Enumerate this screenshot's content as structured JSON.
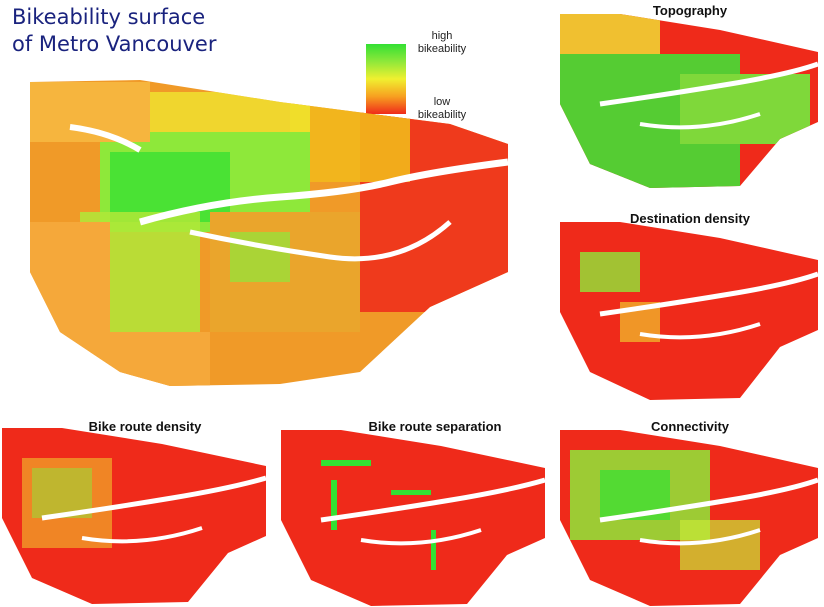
{
  "title": {
    "line1": "Bikeability surface",
    "line2": "of Metro Vancouver"
  },
  "legend": {
    "high_line1": "high",
    "high_line2": "bikeability",
    "low_line1": "low",
    "low_line2": "bikeability",
    "colors": [
      "#33e033",
      "#8ee83a",
      "#f0f030",
      "#f7a020",
      "#ef2a1a"
    ]
  },
  "panels": {
    "main": {
      "name": ""
    },
    "topography": {
      "title": "Topography"
    },
    "destination_density": {
      "title": "Destination density"
    },
    "bike_route_density": {
      "title": "Bike route density"
    },
    "bike_route_separation": {
      "title": "Bike route separation"
    },
    "connectivity": {
      "title": "Connectivity"
    }
  },
  "map_colors": {
    "high": "#33e033",
    "mid_high": "#8ee83a",
    "mid": "#f0f030",
    "mid_low": "#f7a020",
    "low": "#ef2a1a",
    "orange": "#f5a83a",
    "water": "#ffffff"
  }
}
